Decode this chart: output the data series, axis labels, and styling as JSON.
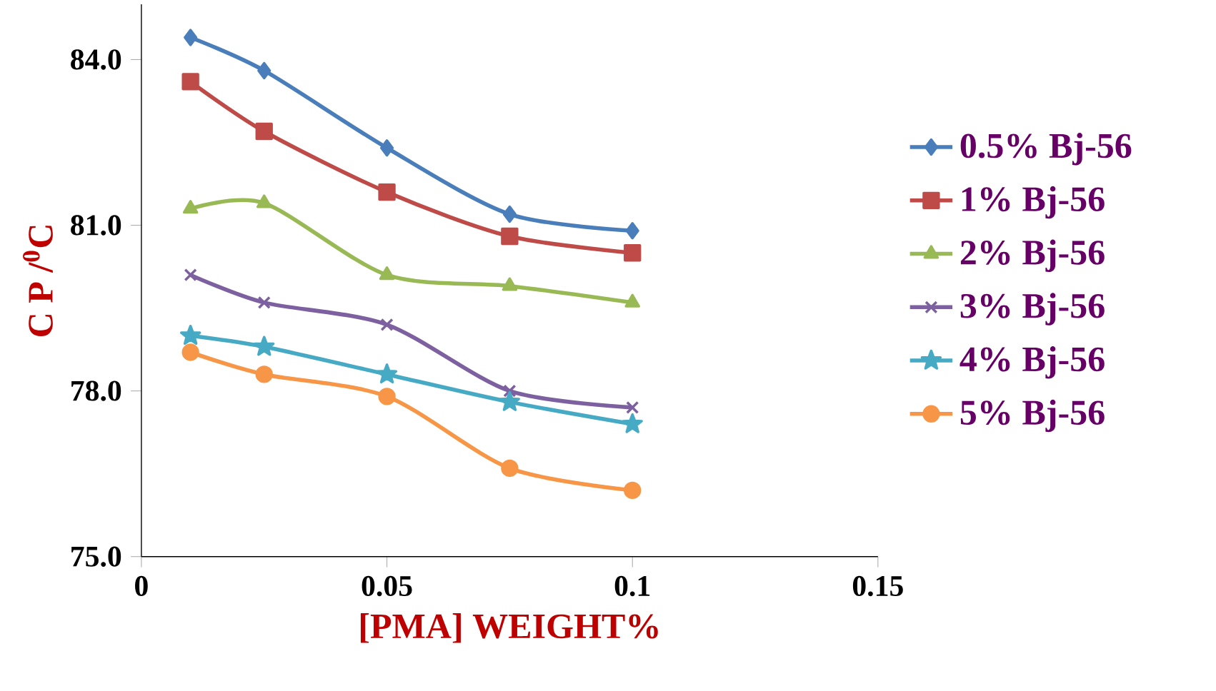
{
  "chart_data": {
    "type": "line",
    "xlabel": "[PMA] WEIGHT%",
    "ylabel": "C P /$^{0}$C",
    "x": [
      0.01,
      0.025,
      0.05,
      0.075,
      0.1
    ],
    "xlim": [
      0,
      0.15
    ],
    "xticks": [
      0,
      0.05,
      0.1,
      0.15
    ],
    "ylim": [
      75,
      85
    ],
    "yticks": [
      {
        "value": 75,
        "label": "75.0"
      },
      {
        "value": 78,
        "label": "78.0"
      },
      {
        "value": 81,
        "label": "81.0"
      },
      {
        "value": 84,
        "label": "84.0"
      }
    ],
    "grid": false,
    "legend": "right",
    "line_style": "solid",
    "series": [
      {
        "name": "0.5% Bj-56",
        "color": "#4a7ebb",
        "marker": "diamond",
        "values": [
          84.4,
          83.8,
          82.4,
          81.2,
          80.9
        ]
      },
      {
        "name": "1% Bj-56",
        "color": "#be4b48",
        "marker": "square",
        "values": [
          83.6,
          82.7,
          81.6,
          80.8,
          80.5
        ]
      },
      {
        "name": "2% Bj-56",
        "color": "#98b954",
        "marker": "triangle",
        "values": [
          81.3,
          81.4,
          80.1,
          79.9,
          79.6
        ]
      },
      {
        "name": "3% Bj-56",
        "color": "#7d60a0",
        "marker": "cross",
        "values": [
          80.1,
          79.6,
          79.2,
          78.0,
          77.7
        ]
      },
      {
        "name": "4% Bj-56",
        "color": "#46aac5",
        "marker": "star",
        "values": [
          79.0,
          78.8,
          78.3,
          77.8,
          77.4
        ]
      },
      {
        "name": "5% Bj-56",
        "color": "#f79646",
        "marker": "circle",
        "values": [
          78.7,
          78.3,
          77.9,
          76.6,
          76.2
        ]
      }
    ]
  }
}
